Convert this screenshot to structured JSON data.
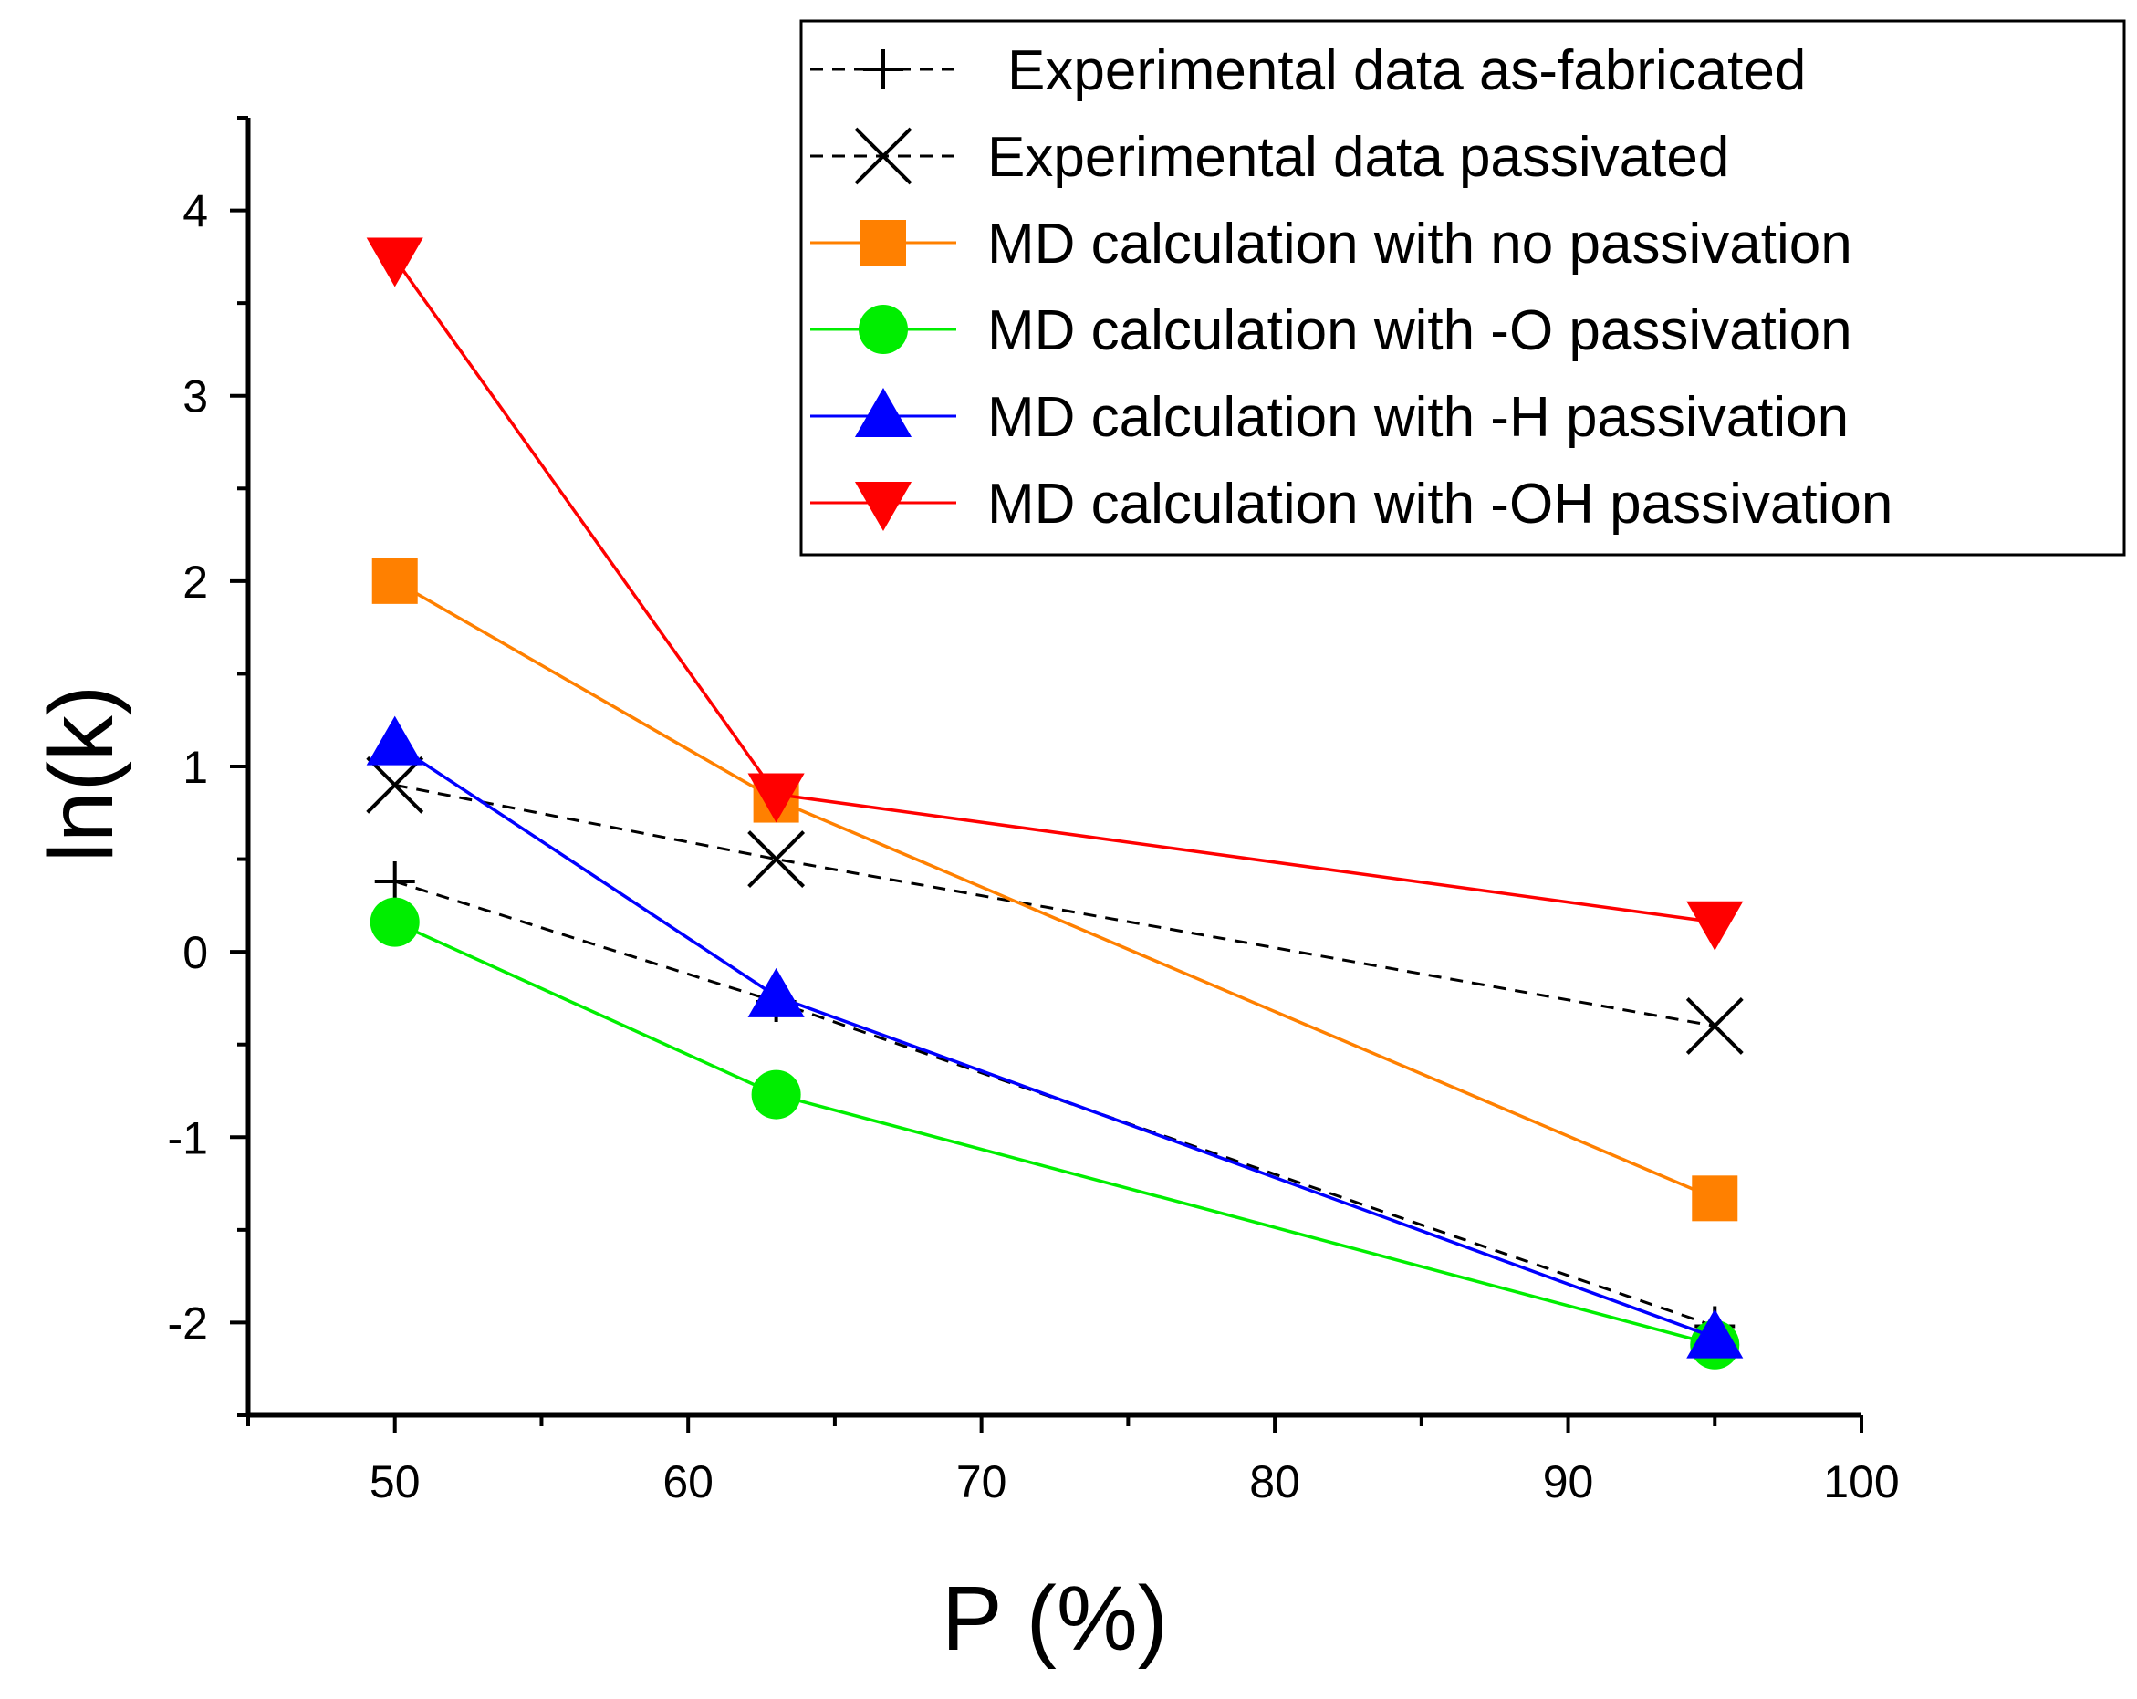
{
  "chart_data": {
    "type": "line",
    "xlabel": "P (%)",
    "ylabel": "ln(k)",
    "xlim": [
      45,
      100
    ],
    "ylim": [
      -2.5,
      4.5
    ],
    "x_ticks": [
      "50",
      "60",
      "70",
      "80",
      "90",
      "100"
    ],
    "y_ticks": [
      "-2",
      "-1",
      "0",
      "1",
      "2",
      "3",
      "4"
    ],
    "x_tick_values": [
      50,
      60,
      70,
      80,
      90,
      100
    ],
    "y_tick_values": [
      -2,
      -1,
      0,
      1,
      2,
      3,
      4
    ],
    "legend_position": "top-right",
    "series": [
      {
        "name": "Experimental data as-fabricated",
        "color": "#000000",
        "line": "dashed",
        "marker": "plus",
        "x": [
          50,
          63,
          95
        ],
        "y": [
          0.38,
          -0.27,
          -2.02
        ]
      },
      {
        "name": "Experimental data passivated",
        "color": "#000000",
        "line": "dashed",
        "marker": "cross",
        "x": [
          50,
          63,
          95
        ],
        "y": [
          0.9,
          0.5,
          -0.4
        ]
      },
      {
        "name": "MD calculation with no passivation",
        "color": "#ff8000",
        "line": "solid",
        "marker": "square",
        "x": [
          50,
          63,
          95
        ],
        "y": [
          2.0,
          0.82,
          -1.33
        ]
      },
      {
        "name": "MD calculation with -O passivation",
        "color": "#00ee00",
        "line": "solid",
        "marker": "circle",
        "x": [
          50,
          63,
          95
        ],
        "y": [
          0.16,
          -0.77,
          -2.12
        ]
      },
      {
        "name": "MD calculation with -H passivation",
        "color": "#0000ff",
        "line": "solid",
        "marker": "triangle-up",
        "x": [
          50,
          63,
          95
        ],
        "y": [
          1.12,
          -0.24,
          -2.08
        ]
      },
      {
        "name": "MD calculation with -OH passivation",
        "color": "#ff0000",
        "line": "solid",
        "marker": "triangle-down",
        "x": [
          50,
          63,
          95
        ],
        "y": [
          3.74,
          0.85,
          0.16
        ]
      }
    ]
  }
}
